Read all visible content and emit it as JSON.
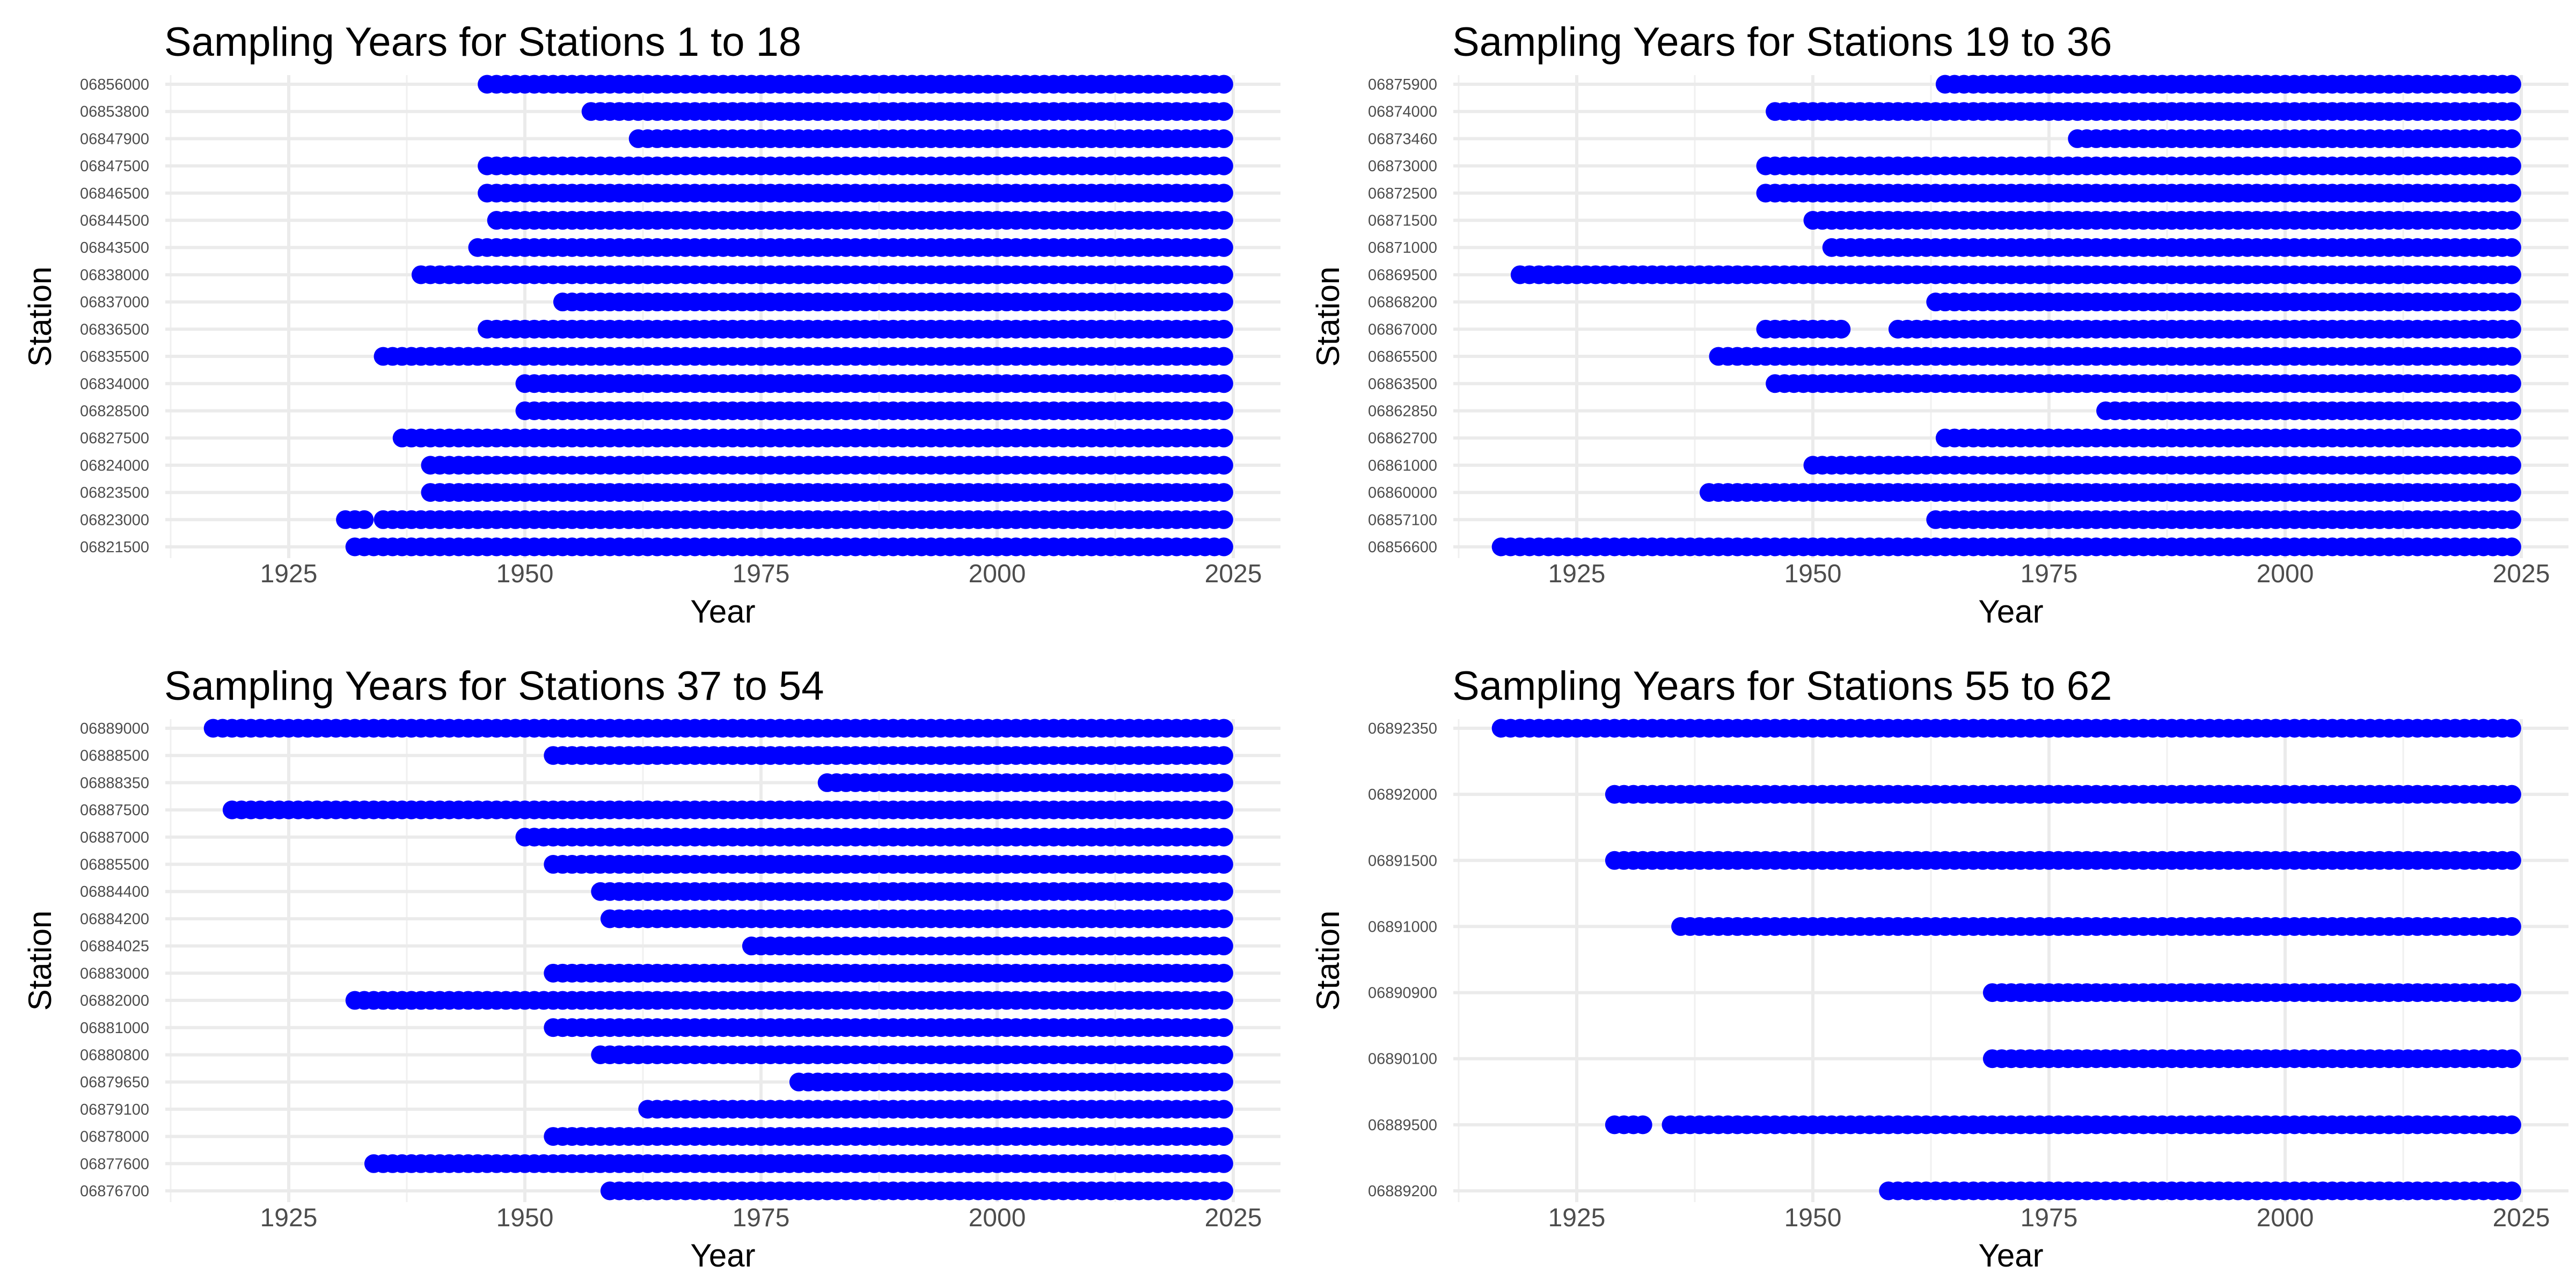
{
  "chart_data": [
    {
      "type": "scatter",
      "title": "Sampling Years for Stations 1 to 18",
      "xlabel": "Year",
      "ylabel": "Station",
      "xlim": [
        1912,
        2027
      ],
      "xticks": [
        1925,
        1950,
        1975,
        2000,
        2025
      ],
      "grid": true,
      "legend": "none",
      "point_color": "#0000ff",
      "stations": [
        {
          "name": "06856000",
          "ranges": [
            [
              1946,
              2024
            ]
          ]
        },
        {
          "name": "06853800",
          "ranges": [
            [
              1957,
              2024
            ]
          ]
        },
        {
          "name": "06847900",
          "ranges": [
            [
              1962,
              2024
            ]
          ]
        },
        {
          "name": "06847500",
          "ranges": [
            [
              1946,
              2024
            ]
          ]
        },
        {
          "name": "06846500",
          "ranges": [
            [
              1946,
              2024
            ]
          ]
        },
        {
          "name": "06844500",
          "ranges": [
            [
              1947,
              2024
            ]
          ]
        },
        {
          "name": "06843500",
          "ranges": [
            [
              1945,
              2024
            ]
          ]
        },
        {
          "name": "06838000",
          "ranges": [
            [
              1939,
              2024
            ]
          ]
        },
        {
          "name": "06837000",
          "ranges": [
            [
              1954,
              2024
            ]
          ]
        },
        {
          "name": "06836500",
          "ranges": [
            [
              1946,
              2024
            ]
          ]
        },
        {
          "name": "06835500",
          "ranges": [
            [
              1935,
              2024
            ]
          ]
        },
        {
          "name": "06834000",
          "ranges": [
            [
              1950,
              2024
            ]
          ]
        },
        {
          "name": "06828500",
          "ranges": [
            [
              1950,
              2024
            ]
          ]
        },
        {
          "name": "06827500",
          "ranges": [
            [
              1937,
              2024
            ]
          ]
        },
        {
          "name": "06824000",
          "ranges": [
            [
              1940,
              2024
            ]
          ]
        },
        {
          "name": "06823500",
          "ranges": [
            [
              1940,
              2024
            ]
          ]
        },
        {
          "name": "06823000",
          "ranges": [
            [
              1931,
              1933
            ],
            [
              1935,
              2024
            ]
          ]
        },
        {
          "name": "06821500",
          "ranges": [
            [
              1932,
              2024
            ]
          ]
        }
      ]
    },
    {
      "type": "scatter",
      "title": "Sampling Years for Stations 19 to 36",
      "xlabel": "Year",
      "ylabel": "Station",
      "xlim": [
        1912,
        2027
      ],
      "xticks": [
        1925,
        1950,
        1975,
        2000,
        2025
      ],
      "grid": true,
      "legend": "none",
      "point_color": "#0000ff",
      "stations": [
        {
          "name": "06875900",
          "ranges": [
            [
              1964,
              2024
            ]
          ]
        },
        {
          "name": "06874000",
          "ranges": [
            [
              1946,
              2024
            ]
          ]
        },
        {
          "name": "06873460",
          "ranges": [
            [
              1978,
              2024
            ]
          ]
        },
        {
          "name": "06873000",
          "ranges": [
            [
              1945,
              2024
            ]
          ]
        },
        {
          "name": "06872500",
          "ranges": [
            [
              1945,
              2024
            ]
          ]
        },
        {
          "name": "06871500",
          "ranges": [
            [
              1950,
              2024
            ]
          ]
        },
        {
          "name": "06871000",
          "ranges": [
            [
              1952,
              2024
            ]
          ]
        },
        {
          "name": "06869500",
          "ranges": [
            [
              1919,
              2024
            ]
          ]
        },
        {
          "name": "06868200",
          "ranges": [
            [
              1963,
              2024
            ]
          ]
        },
        {
          "name": "06867000",
          "ranges": [
            [
              1945,
              1953
            ],
            [
              1959,
              2024
            ]
          ]
        },
        {
          "name": "06865500",
          "ranges": [
            [
              1940,
              2024
            ]
          ]
        },
        {
          "name": "06863500",
          "ranges": [
            [
              1946,
              2024
            ]
          ]
        },
        {
          "name": "06862850",
          "ranges": [
            [
              1981,
              2024
            ]
          ]
        },
        {
          "name": "06862700",
          "ranges": [
            [
              1964,
              2024
            ]
          ]
        },
        {
          "name": "06861000",
          "ranges": [
            [
              1950,
              2024
            ]
          ]
        },
        {
          "name": "06860000",
          "ranges": [
            [
              1939,
              2024
            ]
          ]
        },
        {
          "name": "06857100",
          "ranges": [
            [
              1963,
              2024
            ]
          ]
        },
        {
          "name": "06856600",
          "ranges": [
            [
              1917,
              2024
            ]
          ]
        }
      ]
    },
    {
      "type": "scatter",
      "title": "Sampling Years for Stations 37 to 54",
      "xlabel": "Year",
      "ylabel": "Station",
      "xlim": [
        1912,
        2027
      ],
      "xticks": [
        1925,
        1950,
        1975,
        2000,
        2025
      ],
      "grid": true,
      "legend": "none",
      "point_color": "#0000ff",
      "stations": [
        {
          "name": "06889000",
          "ranges": [
            [
              1917,
              2024
            ]
          ]
        },
        {
          "name": "06888500",
          "ranges": [
            [
              1953,
              2024
            ]
          ]
        },
        {
          "name": "06888350",
          "ranges": [
            [
              1982,
              2024
            ]
          ]
        },
        {
          "name": "06887500",
          "ranges": [
            [
              1919,
              2024
            ]
          ]
        },
        {
          "name": "06887000",
          "ranges": [
            [
              1950,
              2024
            ]
          ]
        },
        {
          "name": "06885500",
          "ranges": [
            [
              1953,
              2024
            ]
          ]
        },
        {
          "name": "06884400",
          "ranges": [
            [
              1958,
              2024
            ]
          ]
        },
        {
          "name": "06884200",
          "ranges": [
            [
              1959,
              2024
            ]
          ]
        },
        {
          "name": "06884025",
          "ranges": [
            [
              1974,
              2024
            ]
          ]
        },
        {
          "name": "06883000",
          "ranges": [
            [
              1953,
              1973
            ],
            [
              1974,
              2024
            ]
          ]
        },
        {
          "name": "06882000",
          "ranges": [
            [
              1932,
              2024
            ]
          ]
        },
        {
          "name": "06881000",
          "ranges": [
            [
              1953,
              2024
            ]
          ]
        },
        {
          "name": "06880800",
          "ranges": [
            [
              1958,
              2024
            ]
          ]
        },
        {
          "name": "06879650",
          "ranges": [
            [
              1979,
              2024
            ]
          ]
        },
        {
          "name": "06879100",
          "ranges": [
            [
              1963,
              2024
            ]
          ]
        },
        {
          "name": "06878000",
          "ranges": [
            [
              1953,
              2024
            ]
          ]
        },
        {
          "name": "06877600",
          "ranges": [
            [
              1934,
              2024
            ]
          ]
        },
        {
          "name": "06876700",
          "ranges": [
            [
              1959,
              2024
            ]
          ]
        }
      ]
    },
    {
      "type": "scatter",
      "title": "Sampling Years for Stations 55 to 62",
      "xlabel": "Year",
      "ylabel": "Station",
      "xlim": [
        1912,
        2027
      ],
      "xticks": [
        1925,
        1950,
        1975,
        2000,
        2025
      ],
      "grid": true,
      "legend": "none",
      "point_color": "#0000ff",
      "stations": [
        {
          "name": "06892350",
          "ranges": [
            [
              1917,
              2024
            ]
          ]
        },
        {
          "name": "06892000",
          "ranges": [
            [
              1929,
              2024
            ]
          ]
        },
        {
          "name": "06891500",
          "ranges": [
            [
              1929,
              2024
            ]
          ]
        },
        {
          "name": "06891000",
          "ranges": [
            [
              1936,
              2024
            ]
          ]
        },
        {
          "name": "06890900",
          "ranges": [
            [
              1969,
              2024
            ]
          ]
        },
        {
          "name": "06890100",
          "ranges": [
            [
              1969,
              2024
            ]
          ]
        },
        {
          "name": "06889500",
          "ranges": [
            [
              1929,
              1932
            ],
            [
              1935,
              2024
            ]
          ]
        },
        {
          "name": "06889200",
          "ranges": [
            [
              1958,
              2024
            ]
          ]
        }
      ]
    }
  ]
}
